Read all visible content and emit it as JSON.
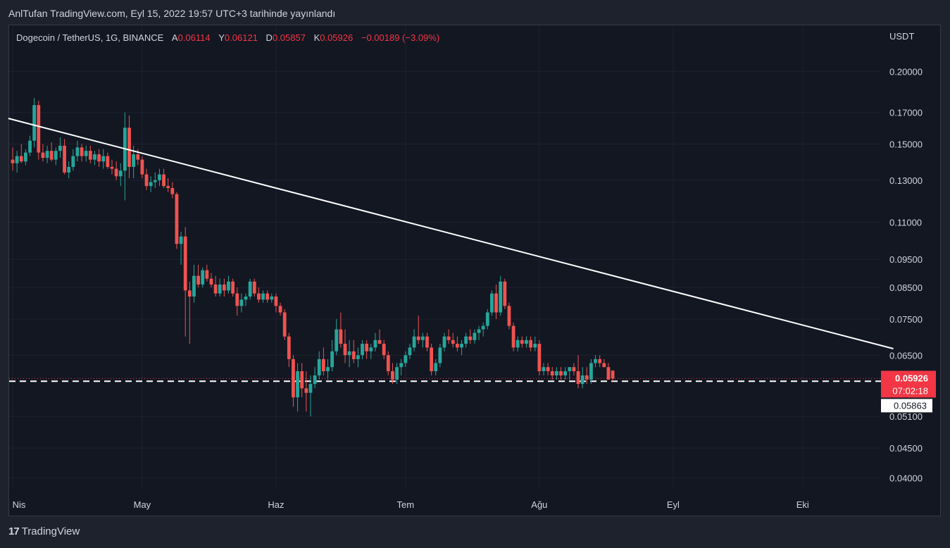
{
  "published_line": "AnlTufan TradingView.com, Eyl 15, 2022 19:57 UTC+3 tarihinde yayınlandı",
  "brand": {
    "logo": "17",
    "name": "TradingView"
  },
  "legend": {
    "symbol": "Dogecoin / TetherUS, 1G, BINANCE",
    "open_label": "A",
    "open": "0.06114",
    "high_label": "Y",
    "high": "0.06121",
    "low_label": "D",
    "low": "0.05857",
    "close_label": "K",
    "close": "0.05926",
    "change": "−0.00189 (−3.09%)"
  },
  "colors": {
    "up": "#26a69a",
    "down": "#ef5350",
    "bg": "#131722",
    "grid": "#1e2230",
    "trendline": "#ffffff",
    "text": "#d1d4dc",
    "price_label": "#f23645"
  },
  "chart_data": {
    "type": "candlestick",
    "currency_label": "USDT",
    "scale": "log",
    "y_range": [
      0.0385,
      0.24
    ],
    "y_ticks": [
      "0.20000",
      "0.17000",
      "0.15000",
      "0.13000",
      "0.11000",
      "0.09500",
      "0.08500",
      "0.07500",
      "0.06500",
      "0.05100",
      "0.04500",
      "0.04000"
    ],
    "x_ticks": [
      "Nis",
      "May",
      "Haz",
      "Tem",
      "Ağu",
      "Eyl",
      "Eki"
    ],
    "x_tick_days": [
      0,
      30,
      61,
      91,
      122,
      153,
      183
    ],
    "current_price": "0.05926",
    "countdown": "07:02:18",
    "support_label": "0.05863",
    "support_level": 0.05863,
    "trendline": {
      "from": {
        "day": -1,
        "value": 0.166
      },
      "to": {
        "day": 204,
        "value": 0.0667
      }
    },
    "candles": [
      [
        0.141,
        0.148,
        0.135,
        0.139
      ],
      [
        0.139,
        0.146,
        0.134,
        0.143
      ],
      [
        0.143,
        0.15,
        0.139,
        0.14
      ],
      [
        0.14,
        0.147,
        0.138,
        0.145
      ],
      [
        0.145,
        0.155,
        0.143,
        0.152
      ],
      [
        0.152,
        0.18,
        0.148,
        0.175
      ],
      [
        0.175,
        0.178,
        0.141,
        0.145
      ],
      [
        0.145,
        0.15,
        0.14,
        0.142
      ],
      [
        0.142,
        0.149,
        0.139,
        0.146
      ],
      [
        0.146,
        0.151,
        0.14,
        0.141
      ],
      [
        0.141,
        0.148,
        0.138,
        0.146
      ],
      [
        0.146,
        0.154,
        0.142,
        0.149
      ],
      [
        0.149,
        0.153,
        0.133,
        0.134
      ],
      [
        0.134,
        0.14,
        0.131,
        0.137
      ],
      [
        0.137,
        0.147,
        0.135,
        0.143
      ],
      [
        0.143,
        0.152,
        0.14,
        0.148
      ],
      [
        0.148,
        0.15,
        0.14,
        0.143
      ],
      [
        0.143,
        0.149,
        0.14,
        0.146
      ],
      [
        0.146,
        0.149,
        0.139,
        0.141
      ],
      [
        0.141,
        0.146,
        0.138,
        0.144
      ],
      [
        0.144,
        0.147,
        0.137,
        0.14
      ],
      [
        0.14,
        0.147,
        0.136,
        0.143
      ],
      [
        0.143,
        0.145,
        0.136,
        0.137
      ],
      [
        0.137,
        0.141,
        0.133,
        0.136
      ],
      [
        0.136,
        0.14,
        0.13,
        0.132
      ],
      [
        0.132,
        0.139,
        0.127,
        0.135
      ],
      [
        0.135,
        0.17,
        0.12,
        0.16
      ],
      [
        0.16,
        0.168,
        0.131,
        0.137
      ],
      [
        0.137,
        0.149,
        0.131,
        0.144
      ],
      [
        0.144,
        0.147,
        0.138,
        0.141
      ],
      [
        0.141,
        0.143,
        0.131,
        0.133
      ],
      [
        0.133,
        0.136,
        0.125,
        0.127
      ],
      [
        0.127,
        0.132,
        0.124,
        0.129
      ],
      [
        0.129,
        0.134,
        0.126,
        0.13
      ],
      [
        0.13,
        0.136,
        0.127,
        0.133
      ],
      [
        0.133,
        0.136,
        0.126,
        0.127
      ],
      [
        0.127,
        0.131,
        0.124,
        0.126
      ],
      [
        0.126,
        0.129,
        0.121,
        0.123
      ],
      [
        0.123,
        0.124,
        0.099,
        0.101
      ],
      [
        0.101,
        0.106,
        0.093,
        0.104
      ],
      [
        0.104,
        0.108,
        0.07,
        0.084
      ],
      [
        0.084,
        0.087,
        0.068,
        0.082
      ],
      [
        0.082,
        0.093,
        0.08,
        0.089
      ],
      [
        0.089,
        0.093,
        0.085,
        0.086
      ],
      [
        0.086,
        0.092,
        0.085,
        0.091
      ],
      [
        0.091,
        0.093,
        0.087,
        0.088
      ],
      [
        0.088,
        0.09,
        0.085,
        0.086
      ],
      [
        0.086,
        0.089,
        0.082,
        0.083
      ],
      [
        0.083,
        0.088,
        0.082,
        0.086
      ],
      [
        0.086,
        0.088,
        0.082,
        0.084
      ],
      [
        0.084,
        0.089,
        0.083,
        0.087
      ],
      [
        0.087,
        0.088,
        0.082,
        0.083
      ],
      [
        0.083,
        0.085,
        0.076,
        0.079
      ],
      [
        0.079,
        0.083,
        0.077,
        0.081
      ],
      [
        0.081,
        0.083,
        0.079,
        0.082
      ],
      [
        0.082,
        0.088,
        0.081,
        0.087
      ],
      [
        0.087,
        0.088,
        0.082,
        0.083
      ],
      [
        0.083,
        0.085,
        0.08,
        0.081
      ],
      [
        0.081,
        0.084,
        0.08,
        0.083
      ],
      [
        0.083,
        0.084,
        0.08,
        0.081
      ],
      [
        0.081,
        0.083,
        0.08,
        0.082
      ],
      [
        0.082,
        0.083,
        0.077,
        0.079
      ],
      [
        0.079,
        0.08,
        0.076,
        0.077
      ],
      [
        0.077,
        0.078,
        0.069,
        0.07
      ],
      [
        0.07,
        0.071,
        0.062,
        0.064
      ],
      [
        0.064,
        0.065,
        0.053,
        0.055
      ],
      [
        0.055,
        0.063,
        0.052,
        0.061
      ],
      [
        0.061,
        0.063,
        0.055,
        0.057
      ],
      [
        0.057,
        0.061,
        0.052,
        0.056
      ],
      [
        0.056,
        0.06,
        0.051,
        0.058
      ],
      [
        0.058,
        0.062,
        0.057,
        0.06
      ],
      [
        0.06,
        0.066,
        0.059,
        0.064
      ],
      [
        0.064,
        0.067,
        0.06,
        0.061
      ],
      [
        0.061,
        0.064,
        0.059,
        0.062
      ],
      [
        0.062,
        0.069,
        0.061,
        0.066
      ],
      [
        0.066,
        0.075,
        0.065,
        0.072
      ],
      [
        0.072,
        0.077,
        0.067,
        0.068
      ],
      [
        0.068,
        0.072,
        0.063,
        0.065
      ],
      [
        0.065,
        0.069,
        0.062,
        0.066
      ],
      [
        0.066,
        0.069,
        0.063,
        0.064
      ],
      [
        0.064,
        0.067,
        0.062,
        0.065
      ],
      [
        0.065,
        0.069,
        0.064,
        0.068
      ],
      [
        0.068,
        0.069,
        0.064,
        0.066
      ],
      [
        0.066,
        0.068,
        0.064,
        0.067
      ],
      [
        0.067,
        0.071,
        0.066,
        0.069
      ],
      [
        0.069,
        0.072,
        0.068,
        0.068
      ],
      [
        0.068,
        0.069,
        0.064,
        0.065
      ],
      [
        0.065,
        0.066,
        0.06,
        0.061
      ],
      [
        0.061,
        0.063,
        0.058,
        0.059
      ],
      [
        0.059,
        0.063,
        0.058,
        0.062
      ],
      [
        0.062,
        0.064,
        0.06,
        0.063
      ],
      [
        0.063,
        0.066,
        0.062,
        0.065
      ],
      [
        0.065,
        0.068,
        0.064,
        0.067
      ],
      [
        0.067,
        0.072,
        0.066,
        0.07
      ],
      [
        0.07,
        0.076,
        0.068,
        0.069
      ],
      [
        0.069,
        0.071,
        0.067,
        0.07
      ],
      [
        0.07,
        0.071,
        0.066,
        0.067
      ],
      [
        0.067,
        0.068,
        0.06,
        0.061
      ],
      [
        0.061,
        0.064,
        0.06,
        0.063
      ],
      [
        0.063,
        0.068,
        0.062,
        0.067
      ],
      [
        0.067,
        0.071,
        0.066,
        0.07
      ],
      [
        0.07,
        0.072,
        0.068,
        0.069
      ],
      [
        0.069,
        0.071,
        0.067,
        0.068
      ],
      [
        0.068,
        0.07,
        0.066,
        0.067
      ],
      [
        0.067,
        0.069,
        0.065,
        0.068
      ],
      [
        0.068,
        0.071,
        0.067,
        0.07
      ],
      [
        0.07,
        0.072,
        0.068,
        0.069
      ],
      [
        0.069,
        0.072,
        0.068,
        0.071
      ],
      [
        0.071,
        0.073,
        0.069,
        0.072
      ],
      [
        0.072,
        0.074,
        0.07,
        0.073
      ],
      [
        0.073,
        0.078,
        0.072,
        0.077
      ],
      [
        0.077,
        0.084,
        0.076,
        0.083
      ],
      [
        0.083,
        0.086,
        0.075,
        0.077
      ],
      [
        0.077,
        0.089,
        0.076,
        0.087
      ],
      [
        0.087,
        0.088,
        0.078,
        0.079
      ],
      [
        0.079,
        0.08,
        0.072,
        0.073
      ],
      [
        0.073,
        0.074,
        0.066,
        0.067
      ],
      [
        0.067,
        0.07,
        0.066,
        0.069
      ],
      [
        0.069,
        0.07,
        0.067,
        0.068
      ],
      [
        0.068,
        0.07,
        0.067,
        0.069
      ],
      [
        0.069,
        0.07,
        0.066,
        0.067
      ],
      [
        0.067,
        0.07,
        0.066,
        0.068
      ],
      [
        0.068,
        0.069,
        0.06,
        0.061
      ],
      [
        0.061,
        0.063,
        0.06,
        0.062
      ],
      [
        0.062,
        0.063,
        0.06,
        0.061
      ],
      [
        0.061,
        0.062,
        0.059,
        0.06
      ],
      [
        0.06,
        0.062,
        0.059,
        0.061
      ],
      [
        0.061,
        0.062,
        0.059,
        0.06
      ],
      [
        0.06,
        0.062,
        0.059,
        0.061
      ],
      [
        0.061,
        0.062,
        0.059,
        0.062
      ],
      [
        0.062,
        0.063,
        0.06,
        0.061
      ],
      [
        0.061,
        0.065,
        0.057,
        0.058
      ],
      [
        0.058,
        0.062,
        0.057,
        0.06
      ],
      [
        0.06,
        0.062,
        0.058,
        0.059
      ],
      [
        0.059,
        0.064,
        0.058,
        0.063
      ],
      [
        0.063,
        0.065,
        0.062,
        0.064
      ],
      [
        0.064,
        0.065,
        0.062,
        0.063
      ],
      [
        0.063,
        0.064,
        0.062,
        0.062
      ],
      [
        0.062,
        0.063,
        0.059,
        0.059
      ],
      [
        0.06114,
        0.06121,
        0.05857,
        0.05926
      ]
    ]
  }
}
